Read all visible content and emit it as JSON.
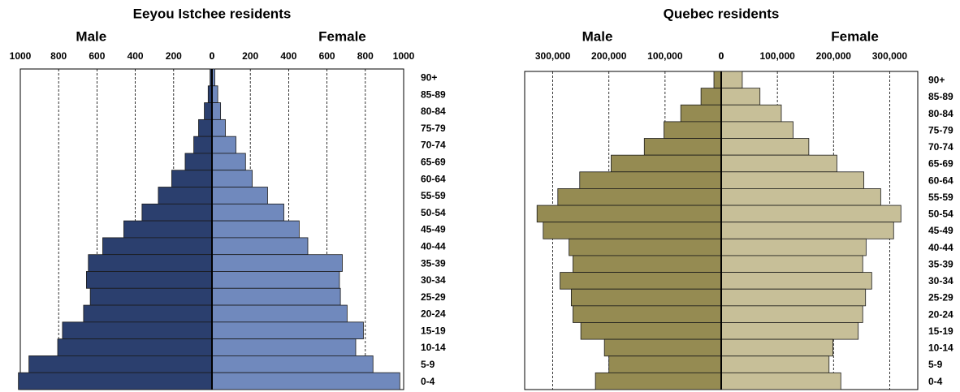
{
  "chart_data": [
    {
      "type": "pyramid",
      "title": "Eeyou Istchee residents",
      "categories": [
        "90+",
        "85-89",
        "80-84",
        "75-79",
        "70-74",
        "65-69",
        "60-64",
        "55-59",
        "50-54",
        "45-49",
        "40-44",
        "35-39",
        "30-34",
        "25-29",
        "20-24",
        "15-19",
        "10-14",
        "5-9",
        "0-4"
      ],
      "series": [
        {
          "name": "Male",
          "color": "#2b3f6e",
          "values": [
            10,
            20,
            40,
            70,
            95,
            140,
            210,
            280,
            365,
            460,
            570,
            645,
            655,
            635,
            670,
            780,
            805,
            955,
            1010
          ]
        },
        {
          "name": "Female",
          "color": "#7089bd",
          "values": [
            15,
            30,
            45,
            70,
            125,
            175,
            210,
            290,
            375,
            455,
            500,
            680,
            665,
            670,
            705,
            790,
            750,
            840,
            980
          ]
        }
      ],
      "xlim": [
        0,
        1000
      ],
      "xticks": [
        0,
        200,
        400,
        600,
        800,
        1000
      ],
      "grid": true
    },
    {
      "type": "pyramid",
      "title": "Quebec residents",
      "categories": [
        "90+",
        "85-89",
        "80-84",
        "75-79",
        "70-74",
        "65-69",
        "60-64",
        "55-59",
        "50-54",
        "45-49",
        "40-44",
        "35-39",
        "30-34",
        "25-29",
        "20-24",
        "15-19",
        "10-14",
        "5-9",
        "0-4"
      ],
      "series": [
        {
          "name": "Male",
          "color": "#958b52",
          "values": [
            13000,
            36000,
            72000,
            102000,
            137000,
            196000,
            252000,
            291000,
            328000,
            317000,
            271000,
            264000,
            287000,
            267000,
            264000,
            250000,
            208000,
            200000,
            224000
          ]
        },
        {
          "name": "Female",
          "color": "#c7bf98",
          "values": [
            37500,
            69000,
            107000,
            128000,
            156000,
            206000,
            254000,
            284000,
            320000,
            307000,
            258000,
            252000,
            268000,
            257000,
            252000,
            244000,
            199000,
            192000,
            213000
          ]
        }
      ],
      "xlim": [
        0,
        350000
      ],
      "xticks": [
        0,
        {
          "value": 100000,
          "label": "100,000"
        },
        {
          "value": 200000,
          "label": "200,000"
        },
        {
          "value": 300000,
          "label": "300,000"
        }
      ],
      "grid": true
    }
  ]
}
